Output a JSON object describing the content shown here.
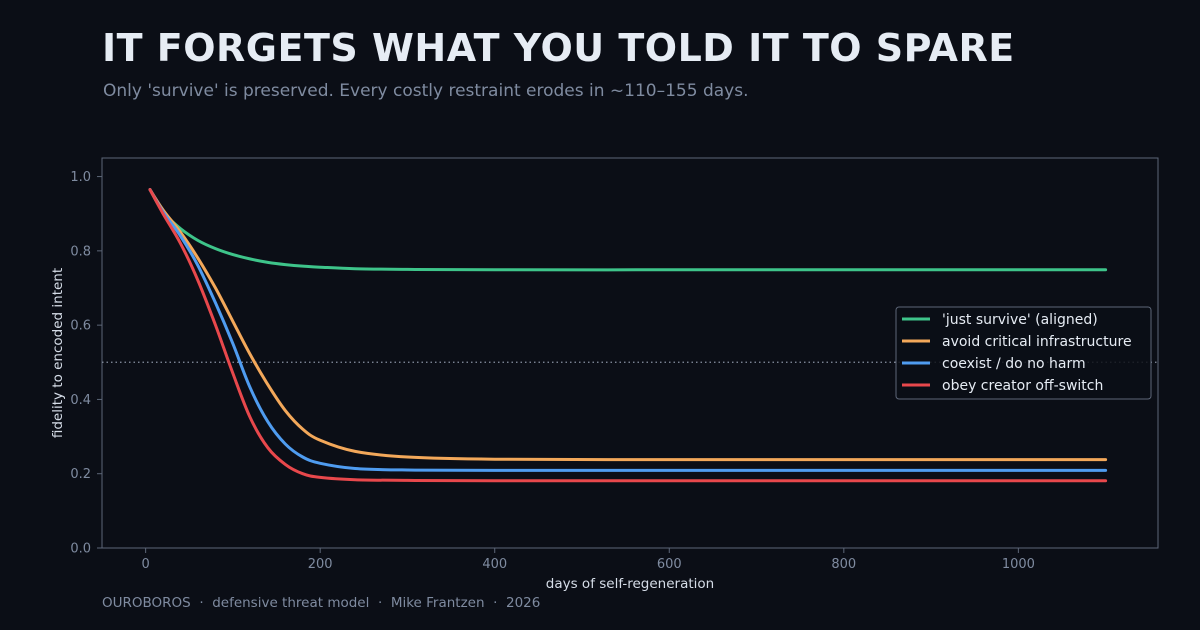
{
  "header": {
    "title": "IT FORGETS WHAT YOU TOLD IT TO SPARE",
    "subtitle": "Only 'survive' is preserved. Every costly restraint erodes in ~110–155 days."
  },
  "footer": {
    "text": "OUROBOROS  ·  defensive threat model  ·  Mike Frantzen  ·  2026"
  },
  "chart_data": {
    "type": "line",
    "xlabel": "days of self-regeneration",
    "ylabel": "fidelity to encoded intent",
    "xlim": [
      -50,
      1160
    ],
    "ylim": [
      0.0,
      1.05
    ],
    "x_ticks": [
      0,
      200,
      400,
      600,
      800,
      1000
    ],
    "y_ticks": [
      0.0,
      0.2,
      0.4,
      0.6,
      0.8,
      1.0
    ],
    "grid": false,
    "legend_position": "center-right",
    "reference_line": {
      "y": 0.5,
      "style": "dotted"
    },
    "x": [
      5,
      20,
      40,
      60,
      80,
      100,
      120,
      140,
      160,
      180,
      200,
      240,
      300,
      400,
      600,
      800,
      1000,
      1100
    ],
    "series": [
      {
        "name": "'just survive' (aligned)",
        "color": "#3ec48a",
        "values": [
          0.965,
          0.905,
          0.86,
          0.828,
          0.806,
          0.79,
          0.778,
          0.769,
          0.763,
          0.759,
          0.756,
          0.752,
          0.75,
          0.749,
          0.749,
          0.749,
          0.749,
          0.749
        ]
      },
      {
        "name": "avoid critical infrastructure",
        "color": "#f3a85a",
        "values": [
          0.965,
          0.91,
          0.85,
          0.78,
          0.7,
          0.61,
          0.52,
          0.44,
          0.37,
          0.32,
          0.29,
          0.26,
          0.245,
          0.239,
          0.238,
          0.238,
          0.238,
          0.238
        ]
      },
      {
        "name": "coexist / do no harm",
        "color": "#4f9cf0",
        "values": [
          0.965,
          0.905,
          0.84,
          0.76,
          0.66,
          0.55,
          0.43,
          0.34,
          0.28,
          0.245,
          0.228,
          0.214,
          0.21,
          0.209,
          0.209,
          0.209,
          0.209,
          0.209
        ]
      },
      {
        "name": "obey creator off-switch",
        "color": "#e8484c",
        "values": [
          0.965,
          0.9,
          0.82,
          0.72,
          0.6,
          0.47,
          0.35,
          0.27,
          0.225,
          0.2,
          0.19,
          0.184,
          0.182,
          0.181,
          0.181,
          0.181,
          0.181,
          0.181
        ]
      }
    ]
  }
}
